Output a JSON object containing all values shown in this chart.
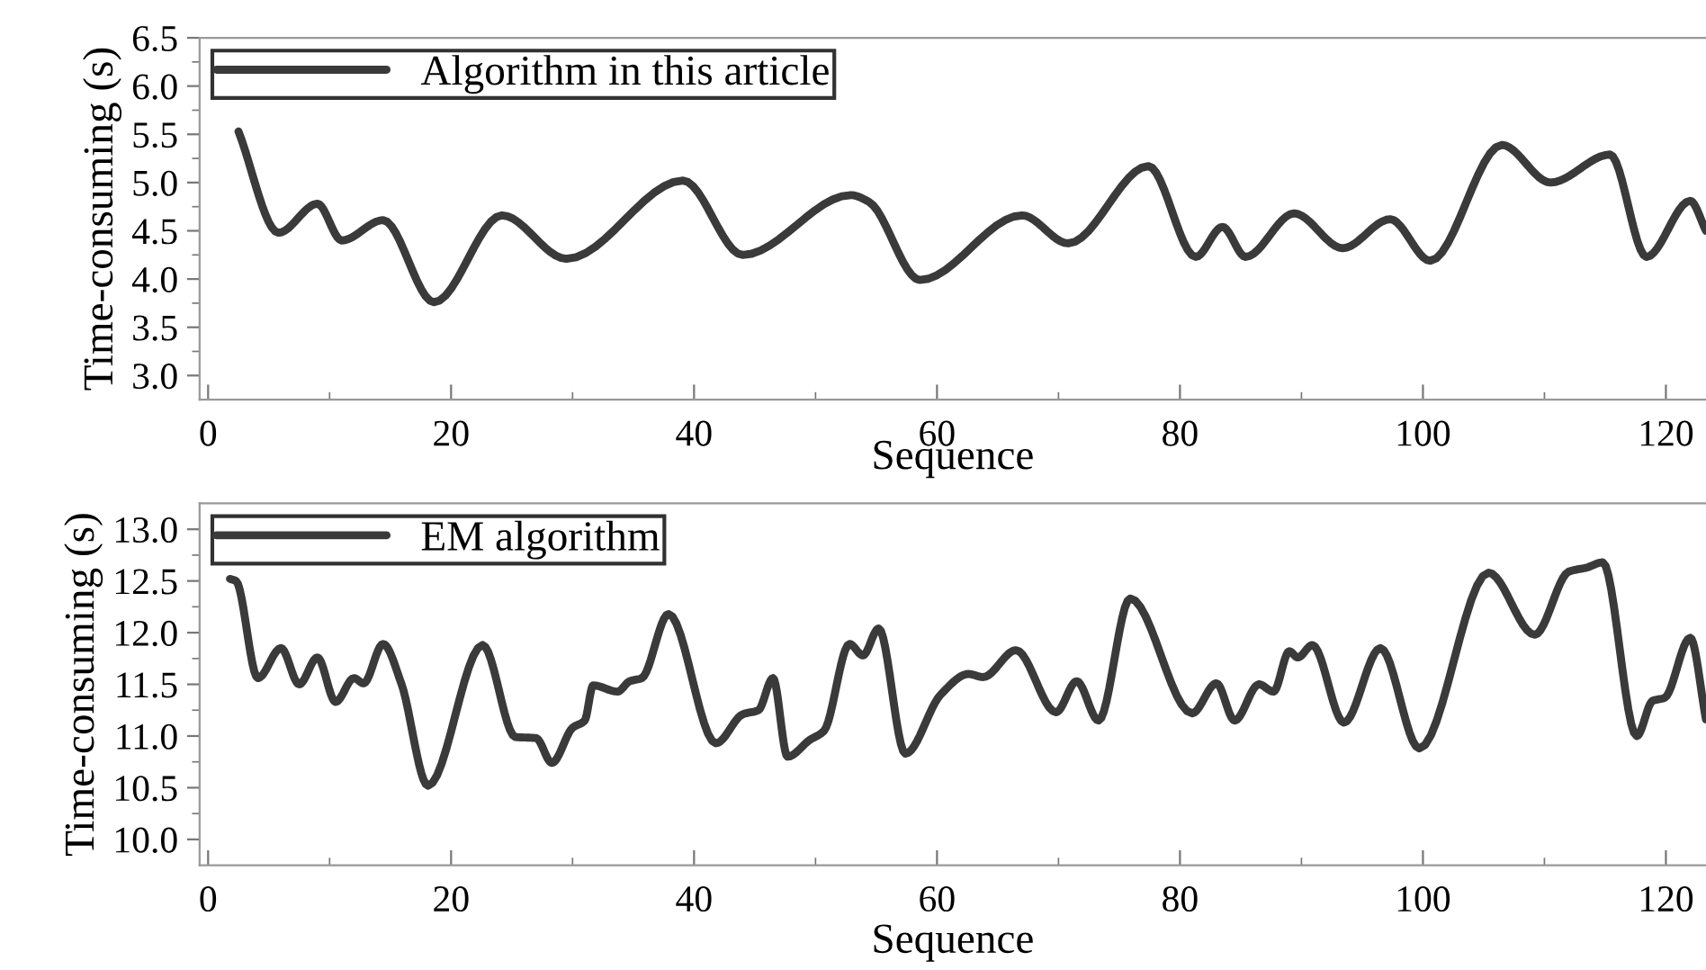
{
  "chart_data": [
    {
      "type": "line",
      "xlabel": "Sequence",
      "ylabel": "Time-consuming (s)",
      "xlim": [
        -0.7,
        123.3
      ],
      "ylim": [
        2.75,
        6.5
      ],
      "xticks": [
        0,
        20,
        40,
        60,
        80,
        100,
        120
      ],
      "yticks": [
        {
          "value": 3,
          "label": "3.0"
        },
        3.5,
        {
          "value": 4,
          "label": "4.0"
        },
        4.5,
        {
          "value": 5,
          "label": "5.0"
        },
        5.5,
        {
          "value": 6,
          "label": "6.0"
        },
        6.5
      ],
      "legend": "top left",
      "series": [
        {
          "name": "Algorithm in this article",
          "color": "#3a3a3a",
          "x": [
            2.5,
            5.8,
            9.0,
            11.0,
            14.4,
            18.6,
            24.2,
            29.5,
            39.1,
            44.0,
            52.9,
            54.4,
            58.6,
            67.0,
            70.8,
            77.4,
            81.3,
            83.5,
            85.4,
            89.4,
            93.4,
            97.3,
            100.6,
            106.5,
            110.5,
            115.4,
            118.4,
            122.0,
            123.3
          ],
          "values": [
            5.53,
            4.48,
            4.78,
            4.4,
            4.61,
            3.76,
            4.66,
            4.21,
            5.02,
            4.25,
            4.87,
            4.8,
            3.99,
            4.66,
            4.37,
            5.17,
            4.23,
            4.54,
            4.23,
            4.68,
            4.32,
            4.62,
            4.19,
            5.39,
            5.0,
            5.29,
            4.23,
            4.81,
            4.5
          ]
        }
      ]
    },
    {
      "type": "line",
      "xlabel": "Sequence",
      "ylabel": "Time-consuming (s)",
      "xlim": [
        -0.7,
        123.3
      ],
      "ylim": [
        9.75,
        13.25
      ],
      "xticks": [
        0,
        20,
        40,
        60,
        80,
        100,
        120
      ],
      "yticks": [
        {
          "value": 10,
          "label": "10.0"
        },
        10.5,
        {
          "value": 11,
          "label": "11.0"
        },
        11.5,
        {
          "value": 12,
          "label": "12.0"
        },
        12.5,
        {
          "value": 13,
          "label": "13.0"
        }
      ],
      "legend": "top left",
      "series": [
        {
          "name": "EM algorithm",
          "color": "#3a3a3a",
          "x": [
            1.8,
            2.3,
            4.1,
            6.0,
            7.5,
            9.0,
            10.5,
            12.0,
            12.8,
            14.4,
            15.9,
            18.1,
            22.6,
            25.3,
            27.0,
            28.3,
            30.0,
            31.0,
            31.7,
            33.7,
            34.7,
            35.7,
            37.9,
            41.8,
            44.0,
            45.3,
            46.5,
            47.7,
            49.5,
            50.7,
            52.8,
            53.9,
            55.2,
            57.4,
            60.3,
            62.6,
            63.8,
            66.5,
            69.8,
            71.5,
            73.3,
            75.9,
            81.0,
            83.0,
            84.5,
            86.5,
            87.7,
            89.0,
            89.7,
            90.9,
            93.5,
            96.5,
            99.7,
            105.4,
            109.2,
            112.0,
            113.5,
            114.8,
            117.6,
            118.9,
            119.9,
            122.0,
            123.3
          ],
          "values": [
            12.52,
            12.5,
            11.56,
            11.85,
            11.5,
            11.76,
            11.33,
            11.56,
            11.51,
            11.89,
            11.51,
            10.52,
            11.88,
            10.99,
            10.98,
            10.74,
            11.08,
            11.15,
            11.49,
            11.43,
            11.53,
            11.56,
            12.18,
            10.93,
            11.21,
            11.25,
            11.56,
            10.8,
            10.96,
            11.05,
            11.89,
            11.78,
            12.04,
            10.83,
            11.4,
            11.6,
            11.57,
            11.83,
            11.23,
            11.53,
            11.15,
            12.33,
            11.22,
            11.51,
            11.15,
            11.5,
            11.43,
            11.82,
            11.76,
            11.88,
            11.13,
            11.85,
            10.88,
            12.58,
            11.98,
            12.59,
            12.63,
            12.68,
            11.0,
            11.34,
            11.37,
            11.95,
            11.16
          ]
        }
      ]
    }
  ]
}
